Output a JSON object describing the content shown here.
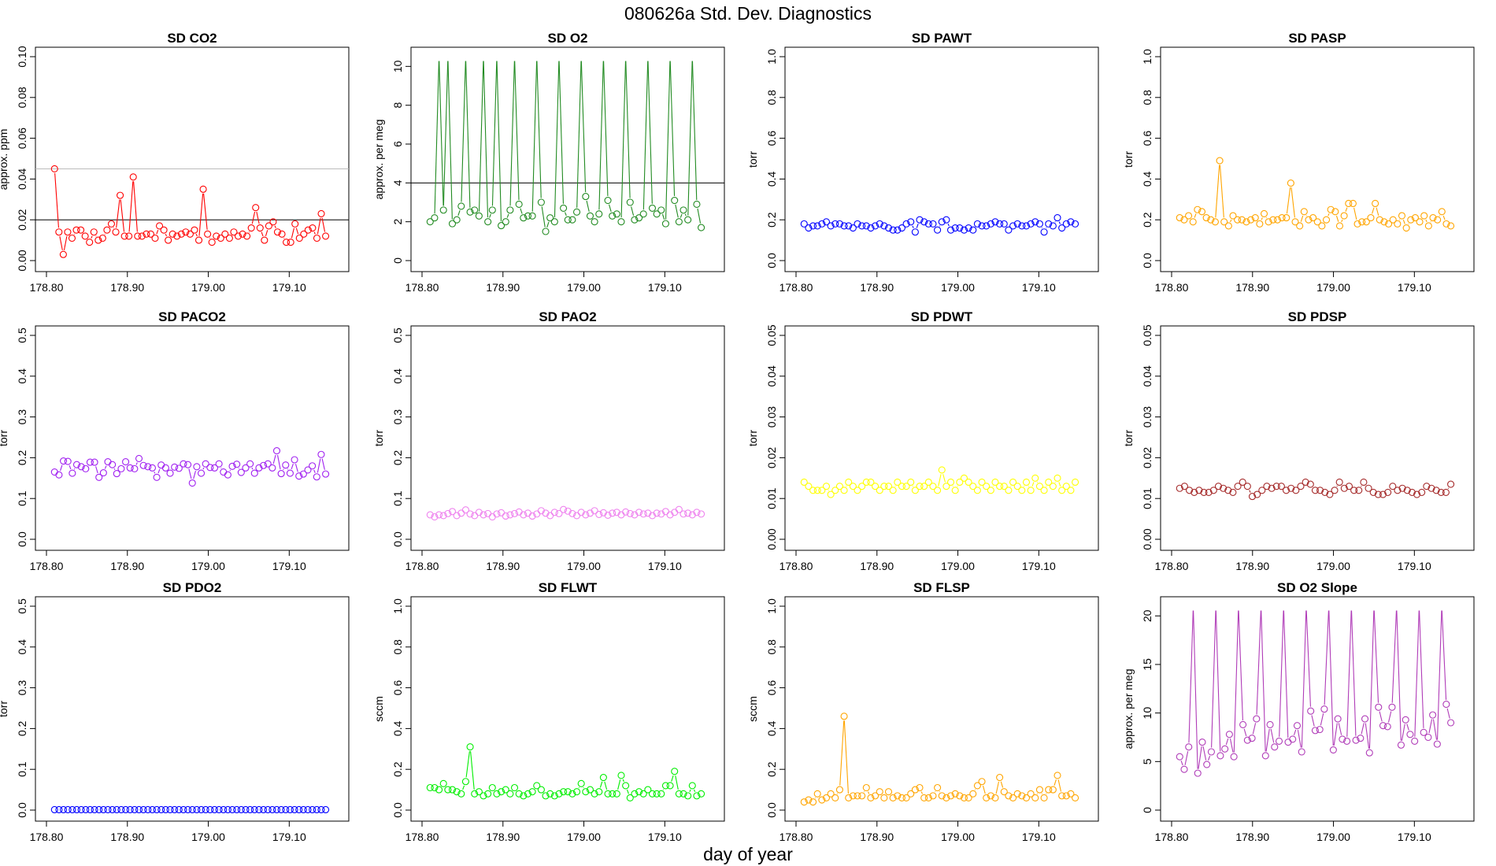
{
  "page": {
    "title": "080626a   Std. Dev. Diagnostics",
    "xlabel": "day of year"
  },
  "chart_data": [
    {
      "type": "line",
      "title": "SD CO2",
      "ylabel": "approx. ppm",
      "color": "#ff0000",
      "xlim": [
        178.8,
        179.16
      ],
      "ylim": [
        0,
        0.1
      ],
      "xticks": [
        "178.80",
        "178.90",
        "179.00",
        "179.10"
      ],
      "yticks": [
        "0.00",
        "0.02",
        "0.04",
        "0.06",
        "0.08",
        "0.10"
      ],
      "hlines": [
        {
          "y": 0.02,
          "color": "#000000"
        },
        {
          "y": 0.045,
          "color": "#bbbbbb"
        }
      ],
      "values": [
        0.045,
        0.014,
        0.003,
        0.014,
        0.011,
        0.015,
        0.015,
        0.012,
        0.009,
        0.014,
        0.01,
        0.011,
        0.015,
        0.018,
        0.014,
        0.032,
        0.012,
        0.012,
        0.041,
        0.012,
        0.012,
        0.013,
        0.013,
        0.011,
        0.017,
        0.015,
        0.01,
        0.013,
        0.012,
        0.013,
        0.014,
        0.013,
        0.015,
        0.01,
        0.035,
        0.013,
        0.009,
        0.012,
        0.011,
        0.013,
        0.011,
        0.014,
        0.012,
        0.013,
        0.012,
        0.016,
        0.026,
        0.016,
        0.01,
        0.017,
        0.019,
        0.014,
        0.013,
        0.009,
        0.009,
        0.018,
        0.011,
        0.013,
        0.015,
        0.016,
        0.011,
        0.023,
        0.012
      ]
    },
    {
      "type": "line",
      "title": "SD O2",
      "ylabel": "approx. per meg",
      "color": "#228b22",
      "xlim": [
        178.8,
        179.16
      ],
      "ylim": [
        0,
        10.5
      ],
      "xticks": [
        "178.80",
        "178.90",
        "179.00",
        "179.10"
      ],
      "yticks": [
        "0",
        "2",
        "4",
        "6",
        "8",
        "10"
      ],
      "hlines": [
        {
          "y": 4,
          "color": "#000000"
        }
      ],
      "values": [
        2.0,
        2.2,
        10.5,
        2.6,
        10.5,
        1.9,
        2.1,
        2.8,
        10.5,
        2.5,
        2.6,
        2.3,
        10.5,
        2.0,
        2.6,
        10.5,
        1.8,
        2.0,
        2.6,
        10.5,
        2.9,
        2.2,
        2.3,
        2.3,
        10.5,
        3.0,
        1.5,
        2.2,
        2.0,
        10.5,
        2.7,
        2.1,
        2.1,
        2.5,
        10.5,
        3.3,
        2.3,
        2.0,
        2.4,
        10.5,
        3.1,
        2.3,
        2.4,
        2.0,
        10.5,
        3.0,
        2.1,
        2.2,
        2.4,
        10.5,
        2.7,
        2.4,
        2.6,
        1.9,
        10.5,
        3.1,
        2.0,
        2.6,
        2.1,
        10.5,
        2.9,
        1.7
      ]
    },
    {
      "type": "line",
      "title": "SD PAWT",
      "ylabel": "torr",
      "color": "#0000ff",
      "xlim": [
        178.8,
        179.16
      ],
      "ylim": [
        0,
        1.0
      ],
      "xticks": [
        "178.80",
        "178.90",
        "179.00",
        "179.10"
      ],
      "yticks": [
        "0.0",
        "0.2",
        "0.4",
        "0.6",
        "0.8",
        "1.0"
      ],
      "hlines": [],
      "values": [
        0.18,
        0.16,
        0.17,
        0.17,
        0.18,
        0.19,
        0.17,
        0.18,
        0.18,
        0.17,
        0.17,
        0.16,
        0.18,
        0.17,
        0.17,
        0.16,
        0.17,
        0.18,
        0.17,
        0.16,
        0.15,
        0.15,
        0.16,
        0.18,
        0.19,
        0.14,
        0.2,
        0.19,
        0.18,
        0.18,
        0.15,
        0.19,
        0.2,
        0.15,
        0.16,
        0.16,
        0.15,
        0.16,
        0.15,
        0.18,
        0.17,
        0.17,
        0.18,
        0.19,
        0.18,
        0.18,
        0.15,
        0.17,
        0.18,
        0.17,
        0.17,
        0.18,
        0.19,
        0.18,
        0.14,
        0.18,
        0.17,
        0.21,
        0.16,
        0.18,
        0.19,
        0.18
      ]
    },
    {
      "type": "line",
      "title": "SD PASP",
      "ylabel": "torr",
      "color": "#ffa500",
      "xlim": [
        178.8,
        179.16
      ],
      "ylim": [
        0,
        1.0
      ],
      "xticks": [
        "178.80",
        "178.90",
        "179.00",
        "179.10"
      ],
      "yticks": [
        "0.0",
        "0.2",
        "0.4",
        "0.6",
        "0.8",
        "1.0"
      ],
      "hlines": [],
      "values": [
        0.21,
        0.2,
        0.22,
        0.19,
        0.25,
        0.24,
        0.21,
        0.2,
        0.19,
        0.49,
        0.19,
        0.17,
        0.22,
        0.2,
        0.2,
        0.19,
        0.2,
        0.21,
        0.18,
        0.23,
        0.19,
        0.2,
        0.2,
        0.21,
        0.21,
        0.38,
        0.19,
        0.17,
        0.24,
        0.2,
        0.21,
        0.19,
        0.17,
        0.2,
        0.25,
        0.24,
        0.17,
        0.22,
        0.28,
        0.28,
        0.18,
        0.19,
        0.19,
        0.21,
        0.28,
        0.2,
        0.19,
        0.18,
        0.2,
        0.18,
        0.22,
        0.16,
        0.2,
        0.21,
        0.19,
        0.22,
        0.17,
        0.21,
        0.2,
        0.24,
        0.18,
        0.17
      ]
    },
    {
      "type": "line",
      "title": "SD PACO2",
      "ylabel": "torr",
      "color": "#a020f0",
      "xlim": [
        178.8,
        179.16
      ],
      "ylim": [
        0,
        0.5
      ],
      "xticks": [
        "178.80",
        "178.90",
        "179.00",
        "179.10"
      ],
      "yticks": [
        "0.0",
        "0.1",
        "0.2",
        "0.3",
        "0.4",
        "0.5"
      ],
      "hlines": [],
      "values": [
        0.165,
        0.158,
        0.192,
        0.191,
        0.162,
        0.183,
        0.178,
        0.173,
        0.189,
        0.189,
        0.152,
        0.163,
        0.19,
        0.183,
        0.161,
        0.173,
        0.19,
        0.175,
        0.173,
        0.198,
        0.181,
        0.178,
        0.175,
        0.152,
        0.182,
        0.175,
        0.162,
        0.177,
        0.174,
        0.185,
        0.183,
        0.138,
        0.178,
        0.162,
        0.185,
        0.176,
        0.175,
        0.185,
        0.165,
        0.158,
        0.179,
        0.184,
        0.164,
        0.175,
        0.185,
        0.162,
        0.175,
        0.181,
        0.185,
        0.175,
        0.217,
        0.161,
        0.182,
        0.162,
        0.195,
        0.155,
        0.16,
        0.17,
        0.18,
        0.153,
        0.208,
        0.16
      ]
    },
    {
      "type": "line",
      "title": "SD PAO2",
      "ylabel": "torr",
      "color": "#ee82ee",
      "xlim": [
        178.8,
        179.16
      ],
      "ylim": [
        0,
        0.5
      ],
      "xticks": [
        "178.80",
        "178.90",
        "179.00",
        "179.10"
      ],
      "yticks": [
        "0.0",
        "0.1",
        "0.2",
        "0.3",
        "0.4",
        "0.5"
      ],
      "hlines": [],
      "values": [
        0.06,
        0.055,
        0.06,
        0.058,
        0.063,
        0.068,
        0.058,
        0.064,
        0.072,
        0.062,
        0.058,
        0.066,
        0.06,
        0.063,
        0.055,
        0.062,
        0.065,
        0.057,
        0.06,
        0.063,
        0.067,
        0.06,
        0.064,
        0.057,
        0.062,
        0.07,
        0.064,
        0.058,
        0.066,
        0.063,
        0.073,
        0.069,
        0.063,
        0.058,
        0.066,
        0.06,
        0.064,
        0.07,
        0.061,
        0.065,
        0.059,
        0.064,
        0.066,
        0.06,
        0.067,
        0.063,
        0.06,
        0.066,
        0.062,
        0.064,
        0.058,
        0.064,
        0.062,
        0.068,
        0.06,
        0.066,
        0.073,
        0.062,
        0.064,
        0.06,
        0.066,
        0.062
      ]
    },
    {
      "type": "line",
      "title": "SD PDWT",
      "ylabel": "torr",
      "color": "#ffff00",
      "xlim": [
        178.8,
        179.16
      ],
      "ylim": [
        0,
        0.05
      ],
      "xticks": [
        "178.80",
        "178.90",
        "179.00",
        "179.10"
      ],
      "yticks": [
        "0.00",
        "0.01",
        "0.02",
        "0.03",
        "0.04",
        "0.05"
      ],
      "hlines": [],
      "values": [
        0.014,
        0.013,
        0.012,
        0.012,
        0.012,
        0.013,
        0.011,
        0.012,
        0.013,
        0.012,
        0.014,
        0.013,
        0.012,
        0.013,
        0.014,
        0.014,
        0.013,
        0.012,
        0.013,
        0.013,
        0.012,
        0.014,
        0.013,
        0.013,
        0.014,
        0.012,
        0.013,
        0.013,
        0.014,
        0.013,
        0.012,
        0.017,
        0.013,
        0.014,
        0.012,
        0.014,
        0.015,
        0.014,
        0.013,
        0.012,
        0.014,
        0.013,
        0.012,
        0.014,
        0.013,
        0.013,
        0.012,
        0.014,
        0.013,
        0.012,
        0.014,
        0.012,
        0.015,
        0.013,
        0.012,
        0.014,
        0.013,
        0.015,
        0.012,
        0.013,
        0.012,
        0.014
      ]
    },
    {
      "type": "line",
      "title": "SD PDSP",
      "ylabel": "torr",
      "color": "#a52a2a",
      "xlim": [
        178.8,
        179.16
      ],
      "ylim": [
        0,
        0.05
      ],
      "xticks": [
        "178.80",
        "178.90",
        "179.00",
        "179.10"
      ],
      "yticks": [
        "0.00",
        "0.01",
        "0.02",
        "0.03",
        "0.04",
        "0.05"
      ],
      "hlines": [],
      "values": [
        0.0125,
        0.013,
        0.012,
        0.0115,
        0.012,
        0.0115,
        0.0115,
        0.012,
        0.013,
        0.0125,
        0.012,
        0.0115,
        0.013,
        0.014,
        0.013,
        0.0105,
        0.011,
        0.012,
        0.013,
        0.0125,
        0.013,
        0.013,
        0.012,
        0.0125,
        0.012,
        0.013,
        0.014,
        0.0135,
        0.012,
        0.012,
        0.0115,
        0.011,
        0.012,
        0.014,
        0.0125,
        0.013,
        0.012,
        0.012,
        0.014,
        0.0125,
        0.0115,
        0.011,
        0.011,
        0.0115,
        0.013,
        0.012,
        0.0125,
        0.012,
        0.0115,
        0.011,
        0.0115,
        0.013,
        0.0125,
        0.012,
        0.0115,
        0.0115,
        0.0135
      ]
    },
    {
      "type": "line",
      "title": "SD PDO2",
      "ylabel": "torr",
      "color": "#0000ff",
      "xlim": [
        178.8,
        179.16
      ],
      "ylim": [
        0,
        0.5
      ],
      "xticks": [
        "178.80",
        "178.90",
        "179.00",
        "179.10"
      ],
      "yticks": [
        "0.0",
        "0.1",
        "0.2",
        "0.3",
        "0.4",
        "0.5"
      ],
      "hlines": [],
      "values": [
        0.001,
        0.001,
        0.001,
        0.001,
        0.001,
        0.001,
        0.001,
        0.001,
        0.001,
        0.001,
        0.001,
        0.001,
        0.001,
        0.001,
        0.001,
        0.001,
        0.001,
        0.001,
        0.001,
        0.001,
        0.001,
        0.001,
        0.001,
        0.001,
        0.001,
        0.001,
        0.001,
        0.001,
        0.001,
        0.001,
        0.001,
        0.001,
        0.001,
        0.001,
        0.001,
        0.001,
        0.001,
        0.001,
        0.001,
        0.001,
        0.001,
        0.001,
        0.001,
        0.001,
        0.001,
        0.001,
        0.001,
        0.001,
        0.001,
        0.001,
        0.001,
        0.001,
        0.001,
        0.001,
        0.001,
        0.001,
        0.001,
        0.001,
        0.001,
        0.001,
        0.001,
        0.001
      ]
    },
    {
      "type": "line",
      "title": "SD FLWT",
      "ylabel": "sccm",
      "color": "#00ee00",
      "xlim": [
        178.8,
        179.16
      ],
      "ylim": [
        0,
        1.0
      ],
      "xticks": [
        "178.80",
        "178.90",
        "179.00",
        "179.10"
      ],
      "yticks": [
        "0.0",
        "0.2",
        "0.4",
        "0.6",
        "0.8",
        "1.0"
      ],
      "hlines": [],
      "values": [
        0.11,
        0.11,
        0.1,
        0.13,
        0.1,
        0.1,
        0.09,
        0.08,
        0.14,
        0.31,
        0.08,
        0.09,
        0.07,
        0.08,
        0.11,
        0.08,
        0.09,
        0.1,
        0.08,
        0.11,
        0.08,
        0.07,
        0.08,
        0.09,
        0.12,
        0.1,
        0.07,
        0.08,
        0.07,
        0.08,
        0.09,
        0.09,
        0.08,
        0.09,
        0.13,
        0.09,
        0.1,
        0.08,
        0.09,
        0.16,
        0.08,
        0.08,
        0.08,
        0.17,
        0.12,
        0.06,
        0.08,
        0.09,
        0.08,
        0.1,
        0.08,
        0.08,
        0.08,
        0.12,
        0.12,
        0.19,
        0.08,
        0.08,
        0.07,
        0.12,
        0.07,
        0.08
      ]
    },
    {
      "type": "line",
      "title": "SD FLSP",
      "ylabel": "sccm",
      "color": "#ffa500",
      "xlim": [
        178.8,
        179.16
      ],
      "ylim": [
        0,
        1.0
      ],
      "xticks": [
        "178.80",
        "178.90",
        "179.00",
        "179.10"
      ],
      "yticks": [
        "0.0",
        "0.2",
        "0.4",
        "0.6",
        "0.8",
        "1.0"
      ],
      "hlines": [],
      "values": [
        0.04,
        0.05,
        0.04,
        0.08,
        0.05,
        0.06,
        0.08,
        0.06,
        0.1,
        0.46,
        0.06,
        0.07,
        0.07,
        0.07,
        0.11,
        0.06,
        0.07,
        0.09,
        0.06,
        0.09,
        0.06,
        0.07,
        0.06,
        0.06,
        0.08,
        0.1,
        0.11,
        0.06,
        0.06,
        0.07,
        0.11,
        0.07,
        0.06,
        0.07,
        0.08,
        0.07,
        0.06,
        0.06,
        0.08,
        0.12,
        0.14,
        0.06,
        0.07,
        0.06,
        0.16,
        0.09,
        0.07,
        0.06,
        0.08,
        0.07,
        0.06,
        0.08,
        0.06,
        0.1,
        0.06,
        0.1,
        0.1,
        0.17,
        0.07,
        0.07,
        0.08,
        0.06
      ]
    },
    {
      "type": "line",
      "title": "SD O2 Slope",
      "ylabel": "approx. per meg",
      "color": "#b03cb8",
      "xlim": [
        178.8,
        179.16
      ],
      "ylim": [
        0,
        21
      ],
      "xticks": [
        "178.80",
        "178.90",
        "179.00",
        "179.10"
      ],
      "yticks": [
        "0",
        "5",
        "10",
        "15",
        "20"
      ],
      "hlines": [],
      "values": [
        5.5,
        4.2,
        6.5,
        21,
        3.8,
        7.0,
        4.7,
        6.0,
        21,
        5.6,
        6.3,
        7.8,
        5.5,
        21,
        8.8,
        7.2,
        7.4,
        9.4,
        21,
        5.6,
        8.8,
        6.5,
        7.1,
        21,
        7.0,
        7.3,
        8.7,
        6.0,
        21,
        10.2,
        8.2,
        8.3,
        10.4,
        21,
        6.2,
        9.4,
        7.3,
        7.1,
        21,
        7.2,
        7.4,
        9.4,
        5.9,
        21,
        10.6,
        8.7,
        8.6,
        10.6,
        21,
        6.7,
        9.3,
        7.8,
        7.1,
        21,
        8.0,
        7.5,
        9.8,
        6.8,
        21,
        10.9,
        9.0
      ]
    }
  ]
}
